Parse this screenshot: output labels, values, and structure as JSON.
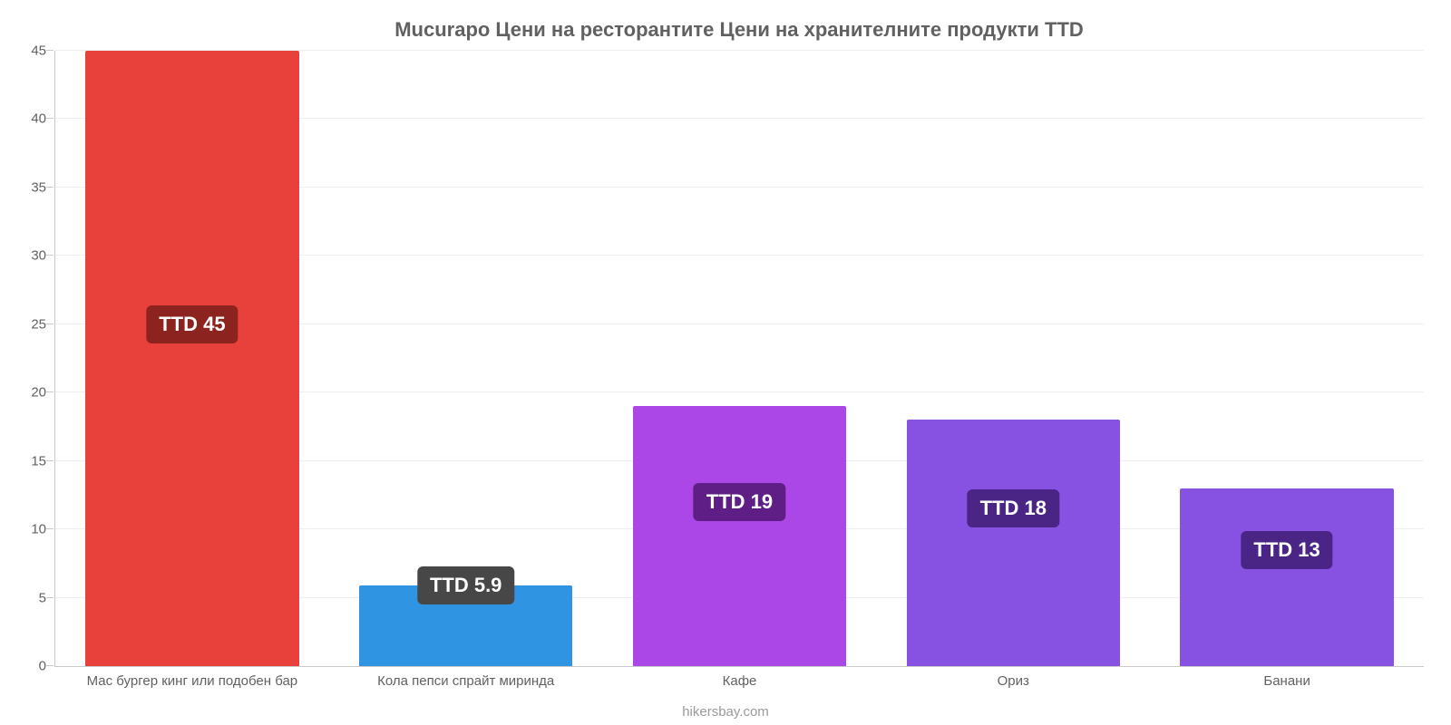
{
  "chart": {
    "type": "bar",
    "title": "Mucurapo Цени на ресторантите Цени на хранителните продукти TTD",
    "title_fontsize": 22,
    "title_color": "#616161",
    "attribution": "hikersbay.com",
    "attribution_color": "#9a9a9a",
    "attribution_fontsize": 15,
    "background_color": "#ffffff",
    "grid_color": "#efefef",
    "axis_color": "#c9c9c9",
    "ylim": [
      0,
      45
    ],
    "ytick_step": 5,
    "yticks": [
      0,
      5,
      10,
      15,
      20,
      25,
      30,
      35,
      40,
      45
    ],
    "ytick_fontsize": 15,
    "xtick_fontsize": 15,
    "bar_width_pct": 78,
    "value_badge_fontsize": 22,
    "categories": [
      "Мас бургер кинг или подобен бар",
      "Кола пепси спрайт миринда",
      "Кафе",
      "Ориз",
      "Банани"
    ],
    "values": [
      45,
      5.9,
      19,
      18,
      13
    ],
    "value_labels": [
      "TTD 45",
      "TTD 5.9",
      "TTD 19",
      "TTD 18",
      "TTD 13"
    ],
    "bar_colors": [
      "#e8403a",
      "#2f94e2",
      "#ab47e7",
      "#8751e2",
      "#8751e2"
    ],
    "badge_colors": [
      "#8c231f",
      "#474747",
      "#5f1e86",
      "#4a2586",
      "#4a2586"
    ],
    "badge_y_values": [
      25,
      5.9,
      12,
      11.5,
      8.5
    ]
  }
}
